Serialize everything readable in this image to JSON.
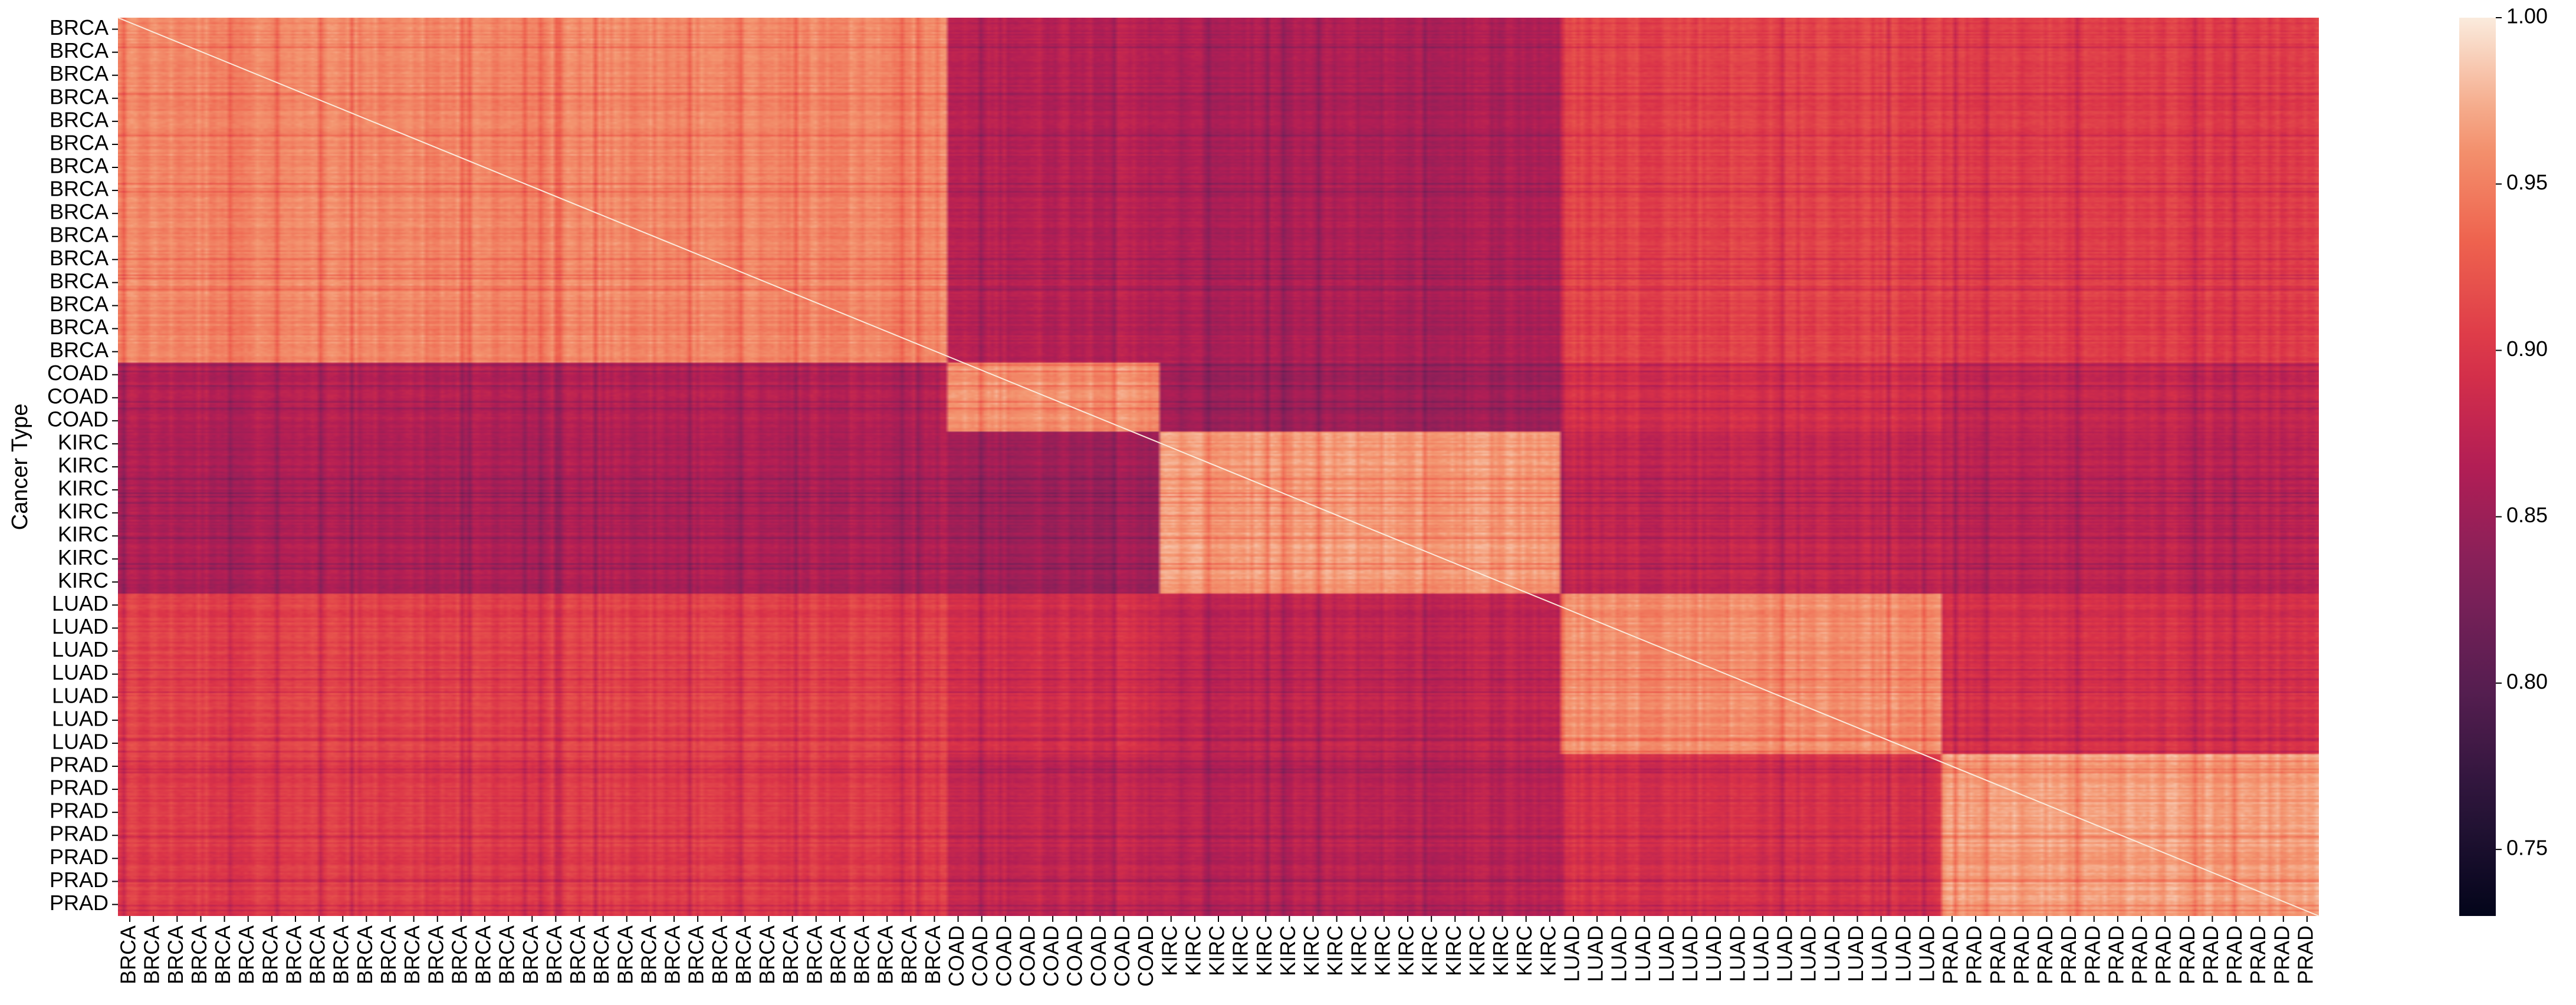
{
  "chart_data": {
    "type": "heatmap",
    "title": "",
    "xlabel": "",
    "ylabel": "Cancer Type",
    "groups": [
      {
        "name": "BRCA",
        "y_ticks": 15,
        "x_ticks": 35
      },
      {
        "name": "COAD",
        "y_ticks": 3,
        "x_ticks": 9
      },
      {
        "name": "KIRC",
        "y_ticks": 7,
        "x_ticks": 17
      },
      {
        "name": "LUAD",
        "y_ticks": 7,
        "x_ticks": 16
      },
      {
        "name": "PRAD",
        "y_ticks": 7,
        "x_ticks": 16
      }
    ],
    "block_means": [
      [
        0.955,
        0.87,
        0.862,
        0.91,
        0.905
      ],
      [
        0.868,
        0.962,
        0.853,
        0.893,
        0.88
      ],
      [
        0.862,
        0.853,
        0.965,
        0.878,
        0.872
      ],
      [
        0.91,
        0.893,
        0.878,
        0.96,
        0.895
      ],
      [
        0.905,
        0.88,
        0.872,
        0.895,
        0.968
      ]
    ],
    "diagonal_value": 1.0,
    "colorbar": {
      "min": 0.73,
      "max": 1.0,
      "ticks": [
        "0.75",
        "0.80",
        "0.85",
        "0.90",
        "0.95",
        "1.00"
      ],
      "tick_values": [
        0.75,
        0.8,
        0.85,
        0.9,
        0.95,
        1.0
      ],
      "colormap": "rocket"
    },
    "grid": false,
    "legend": "colorbar-right"
  }
}
